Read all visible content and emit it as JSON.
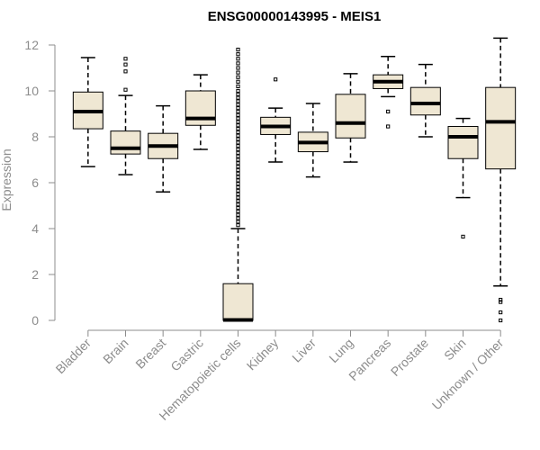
{
  "chart_data": {
    "type": "box",
    "title": "ENSG00000143995 - MEIS1",
    "xlabel": "",
    "ylabel": "Expression",
    "ylim": [
      0,
      12.3
    ],
    "yticks": [
      0,
      2,
      4,
      6,
      8,
      10,
      12
    ],
    "grid": false,
    "legend": "none",
    "box_color": "#efe7d3",
    "categories": [
      "Bladder",
      "Brain",
      "Breast",
      "Gastric",
      "Hematopoietic cells",
      "Kidney",
      "Liver",
      "Lung",
      "Pancreas",
      "Prostate",
      "Skin",
      "Unknown / Other"
    ],
    "boxes": [
      {
        "min": 6.7,
        "q1": 8.35,
        "median": 9.1,
        "q3": 9.95,
        "max": 11.45,
        "outliers": []
      },
      {
        "min": 6.35,
        "q1": 7.25,
        "median": 7.5,
        "q3": 8.25,
        "max": 9.8,
        "outliers": [
          10.05,
          10.85,
          11.15,
          11.4
        ]
      },
      {
        "min": 5.6,
        "q1": 7.05,
        "median": 7.6,
        "q3": 8.15,
        "max": 9.35,
        "outliers": []
      },
      {
        "min": 7.45,
        "q1": 8.5,
        "median": 8.8,
        "q3": 10.0,
        "max": 10.7,
        "outliers": []
      },
      {
        "min": 0,
        "q1": 0,
        "median": 0.02,
        "q3": 1.6,
        "max": 4.0,
        "outliers": [
          4.15,
          4.3,
          4.45,
          4.6,
          4.75,
          4.9,
          5.05,
          5.2,
          5.35,
          5.5,
          5.65,
          5.8,
          5.95,
          6.1,
          6.25,
          6.4,
          6.55,
          6.7,
          6.85,
          7.0,
          7.15,
          7.3,
          7.45,
          7.6,
          7.75,
          7.9,
          8.05,
          8.2,
          8.35,
          8.5,
          8.65,
          8.8,
          8.95,
          9.1,
          9.25,
          9.4,
          9.55,
          9.7,
          9.85,
          10.0,
          10.2,
          10.4,
          10.6,
          10.8,
          11.0,
          11.2,
          11.4,
          11.6,
          11.8
        ]
      },
      {
        "min": 6.9,
        "q1": 8.1,
        "median": 8.45,
        "q3": 8.85,
        "max": 9.25,
        "outliers": [
          10.5
        ]
      },
      {
        "min": 6.25,
        "q1": 7.35,
        "median": 7.75,
        "q3": 8.2,
        "max": 9.45,
        "outliers": []
      },
      {
        "min": 6.9,
        "q1": 7.95,
        "median": 8.6,
        "q3": 9.85,
        "max": 10.75,
        "outliers": []
      },
      {
        "min": 9.75,
        "q1": 10.1,
        "median": 10.4,
        "q3": 10.7,
        "max": 11.5,
        "outliers": [
          8.45,
          9.1
        ]
      },
      {
        "min": 8.0,
        "q1": 8.95,
        "median": 9.45,
        "q3": 10.15,
        "max": 11.15,
        "outliers": []
      },
      {
        "min": 5.35,
        "q1": 7.05,
        "median": 8.0,
        "q3": 8.45,
        "max": 8.8,
        "outliers": [
          3.65
        ]
      },
      {
        "min": 1.5,
        "q1": 6.6,
        "median": 8.65,
        "q3": 10.15,
        "max": 12.3,
        "outliers": [
          0.0,
          0.35,
          0.8,
          0.9
        ]
      }
    ]
  }
}
